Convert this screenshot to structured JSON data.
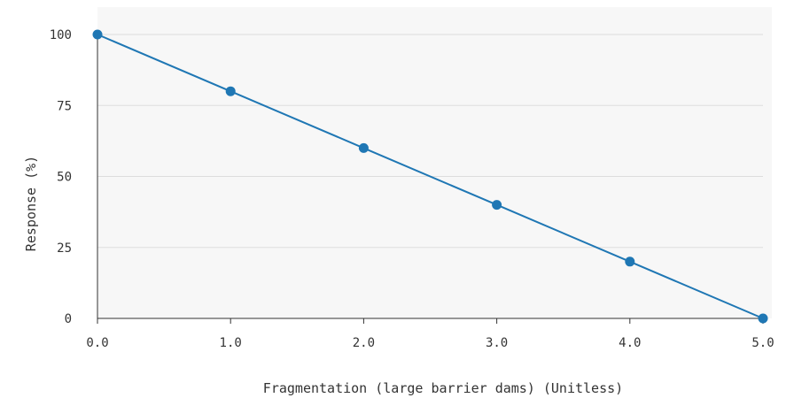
{
  "chart_data": {
    "type": "line",
    "title": "",
    "xlabel": "Fragmentation (large barrier dams) (Unitless)",
    "ylabel": "Response (%)",
    "xlim": [
      0,
      5
    ],
    "ylim": [
      0,
      100
    ],
    "x_ticks": [
      "0.0",
      "1.0",
      "2.0",
      "3.0",
      "4.0",
      "5.0"
    ],
    "y_ticks": [
      "0",
      "25",
      "50",
      "75",
      "100"
    ],
    "grid": true,
    "series": [
      {
        "x": [
          0,
          1,
          2,
          3,
          4,
          5
        ],
        "y": [
          100,
          80,
          60,
          40,
          20,
          0
        ],
        "color": "#1f77b4"
      }
    ]
  }
}
